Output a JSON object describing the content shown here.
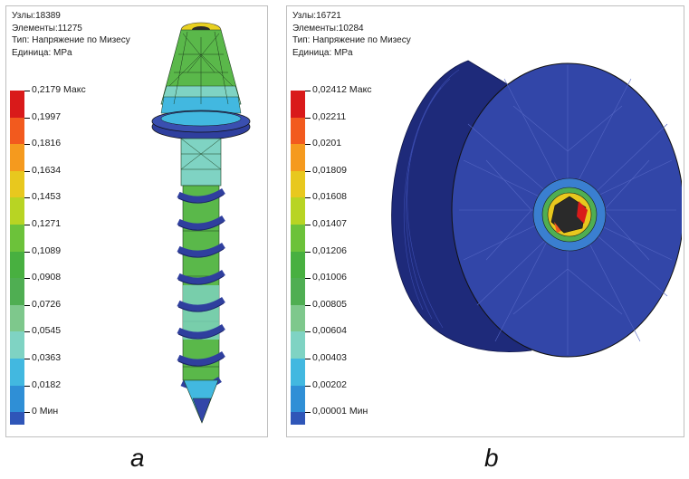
{
  "panel_a": {
    "info": {
      "nodes": "Узлы:18389",
      "elements": "Элементы:11275",
      "type": "Тип: Напряжение по Мизесу",
      "unit": "Единица: MPa"
    },
    "legend": {
      "colors": [
        "#d91a1a",
        "#f25a1e",
        "#f59a1e",
        "#e8c81e",
        "#b8d423",
        "#6cc23a",
        "#48b040",
        "#4fae52",
        "#7ec88c",
        "#7fd3c3",
        "#42b8e0",
        "#2f8fd6",
        "#2f56b8"
      ],
      "labels": [
        "0,2179 Макс",
        "0,1997",
        "0,1816",
        "0,1634",
        "0,1453",
        "0,1271",
        "0,1089",
        "0,0908",
        "0,0726",
        "0,0545",
        "0,0363",
        "0,0182",
        "0 Мин"
      ]
    },
    "caption": "a"
  },
  "panel_b": {
    "info": {
      "nodes": "Узлы:16721",
      "elements": "Элементы:10284",
      "type": "Тип: Напряжение по Мизесу",
      "unit": "Единица: MPa"
    },
    "legend": {
      "colors": [
        "#d91a1a",
        "#f25a1e",
        "#f59a1e",
        "#e8c81e",
        "#b8d423",
        "#6cc23a",
        "#48b040",
        "#4fae52",
        "#7ec88c",
        "#7fd3c3",
        "#42b8e0",
        "#2f8fd6",
        "#2f56b8"
      ],
      "labels": [
        "0,02412 Макс",
        "0,02211",
        "0,0201",
        "0,01809",
        "0,01608",
        "0,01407",
        "0,01206",
        "0,01006",
        "0,00805",
        "0,00604",
        "0,00403",
        "0,00202",
        "0,00001 Мин"
      ]
    },
    "caption": "b"
  },
  "colors": {
    "mesh_blue": "#3246a8",
    "mesh_dark": "#1e2a7a",
    "mesh_green": "#5ab84a",
    "mesh_cyan": "#6cc8c0"
  }
}
